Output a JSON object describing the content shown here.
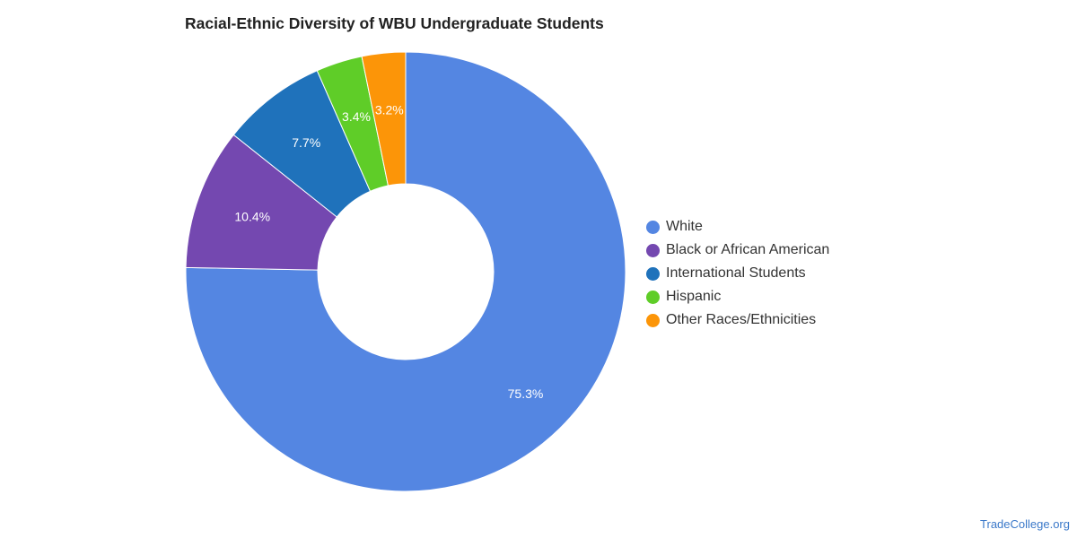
{
  "chart_data": {
    "type": "pie",
    "title": "Racial-Ethnic Diversity of WBU Undergraduate Students",
    "categories": [
      "White",
      "Black or African American",
      "International Students",
      "Hispanic",
      "Other Races/Ethnicities"
    ],
    "values": [
      75.3,
      10.4,
      7.7,
      3.4,
      3.2
    ],
    "value_labels": [
      "75.3%",
      "10.4%",
      "7.7%",
      "3.4%",
      "3.2%"
    ],
    "colors": [
      "#5486e2",
      "#7448b0",
      "#1f72bb",
      "#5fcd28",
      "#fc9508"
    ],
    "donut": true,
    "legend_position": "right"
  },
  "source": "TradeCollege.org"
}
